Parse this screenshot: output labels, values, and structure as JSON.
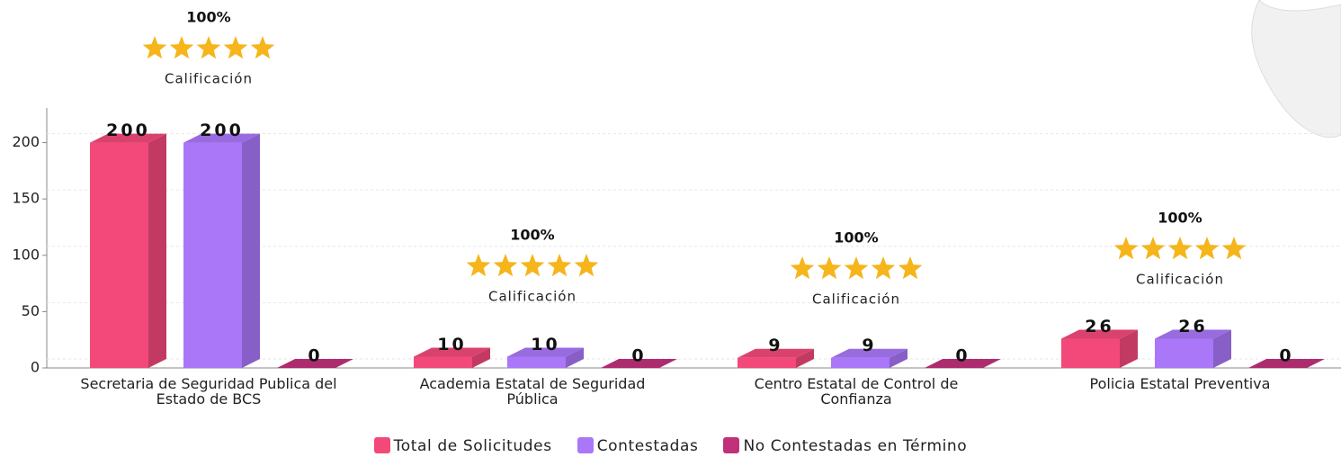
{
  "chart_data": {
    "type": "bar3d",
    "categories": [
      "Secretaria de Seguridad Publica del Estado de BCS",
      "Academia  Estatal de Seguridad Pública",
      "Centro Estatal de Control de Confianza",
      "Policia Estatal Preventiva"
    ],
    "series": [
      {
        "name": "Total de Solicitudes",
        "color": "#f2497a",
        "values": [
          200,
          10,
          9,
          26
        ]
      },
      {
        "name": "Contestadas",
        "color": "#a977f7",
        "values": [
          200,
          10,
          9,
          26
        ]
      },
      {
        "name": "No Contestadas en Término",
        "color": "#c0317a",
        "values": [
          0,
          0,
          0,
          0
        ]
      }
    ],
    "ylim": [
      0,
      230
    ],
    "yticks": [
      0,
      50,
      100,
      150,
      200
    ],
    "grid": true,
    "annotations": [
      {
        "label": "100%",
        "caption": "Calificación"
      },
      {
        "label": "100%",
        "caption": "Calificación"
      },
      {
        "label": "100%",
        "caption": "Calificación"
      },
      {
        "label": "100%",
        "caption": "Calificación"
      }
    ]
  }
}
